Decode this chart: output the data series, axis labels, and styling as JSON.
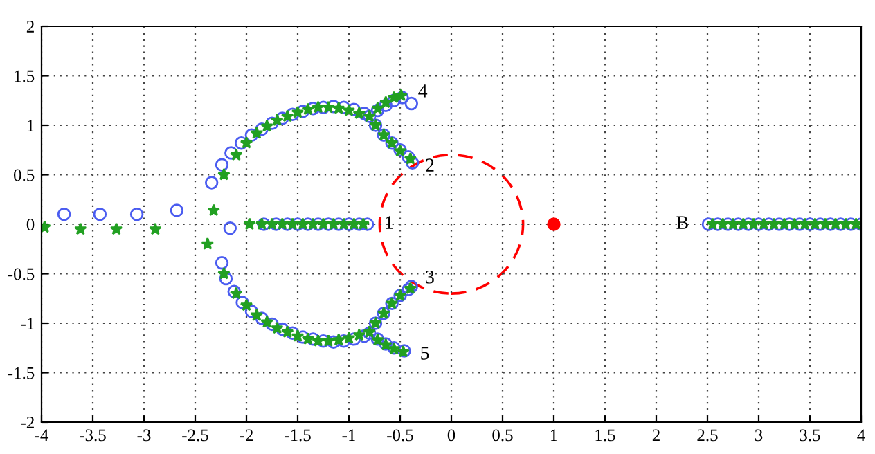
{
  "chart_data": {
    "type": "scatter",
    "xlim": [
      -4,
      4
    ],
    "ylim": [
      -2,
      2
    ],
    "xticks": [
      -4,
      -3.5,
      -3,
      -2.5,
      -2,
      -1.5,
      -1,
      -0.5,
      0,
      0.5,
      1,
      1.5,
      2,
      2.5,
      3,
      3.5,
      4
    ],
    "yticks": [
      -2,
      -1.5,
      -1,
      -0.5,
      0,
      0.5,
      1,
      1.5,
      2
    ],
    "grid": true,
    "legend": false,
    "series": [
      {
        "marker": "circle",
        "color": "#4a5cf0",
        "x": [
          -3.78,
          -3.43,
          -3.07,
          -2.68,
          -2.16,
          -1.83,
          -1.71,
          -1.6,
          -1.5,
          -1.4,
          -1.3,
          -1.2,
          -1.1,
          -1.0,
          -0.9,
          -0.82,
          -2.34,
          -2.24,
          -2.15,
          -2.05,
          -1.95,
          -1.85,
          -1.75,
          -1.65,
          -1.55,
          -1.45,
          -1.35,
          -1.25,
          -1.15,
          -1.05,
          -0.95,
          -0.85,
          -0.8,
          -0.72,
          -0.64,
          -0.56,
          -0.48,
          -0.39,
          -0.74,
          -0.66,
          -0.58,
          -0.5,
          -0.42,
          -0.38,
          -2.24,
          -2.2,
          -2.12,
          -2.04,
          -1.95,
          -1.85,
          -1.75,
          -1.65,
          -1.55,
          -1.45,
          -1.35,
          -1.25,
          -1.15,
          -1.05,
          -0.95,
          -0.85,
          -0.8,
          -0.74,
          -0.66,
          -0.58,
          -0.5,
          -0.42,
          -0.39,
          -0.72,
          -0.64,
          -0.56,
          -0.46,
          2.51,
          2.6,
          2.7,
          2.8,
          2.9,
          3.0,
          3.1,
          3.2,
          3.3,
          3.4,
          3.5,
          3.6,
          3.7,
          3.8,
          3.9,
          4.0
        ],
        "values": [
          0.1,
          0.1,
          0.1,
          0.14,
          -0.04,
          0,
          0,
          0,
          0,
          0,
          0,
          0,
          0,
          0,
          0,
          0,
          0.42,
          0.6,
          0.72,
          0.82,
          0.9,
          0.96,
          1.02,
          1.07,
          1.11,
          1.14,
          1.17,
          1.18,
          1.19,
          1.18,
          1.16,
          1.12,
          1.09,
          1.15,
          1.2,
          1.25,
          1.28,
          1.22,
          1.0,
          0.9,
          0.82,
          0.75,
          0.68,
          0.62,
          -0.39,
          -0.55,
          -0.68,
          -0.79,
          -0.88,
          -0.95,
          -1.01,
          -1.06,
          -1.1,
          -1.14,
          -1.16,
          -1.18,
          -1.19,
          -1.18,
          -1.16,
          -1.13,
          -1.1,
          -1.0,
          -0.9,
          -0.8,
          -0.72,
          -0.66,
          -0.63,
          -1.16,
          -1.21,
          -1.25,
          -1.28,
          0,
          0,
          0,
          0,
          0,
          0,
          0,
          0,
          0,
          0,
          0,
          0,
          0,
          0,
          0,
          0
        ]
      },
      {
        "marker": "star",
        "color": "#22a022",
        "x": [
          -3.97,
          -3.62,
          -3.27,
          -2.89,
          -2.32,
          -2.38,
          -1.97,
          -1.85,
          -1.75,
          -1.65,
          -1.55,
          -1.45,
          -1.35,
          -1.25,
          -1.15,
          -1.05,
          -0.95,
          -0.86,
          -2.22,
          -2.1,
          -2.0,
          -1.9,
          -1.8,
          -1.7,
          -1.6,
          -1.5,
          -1.4,
          -1.3,
          -1.2,
          -1.1,
          -1.0,
          -0.9,
          -0.8,
          -0.72,
          -0.64,
          -0.56,
          -0.49,
          -0.74,
          -0.66,
          -0.58,
          -0.5,
          -0.4,
          -2.22,
          -2.1,
          -2.0,
          -1.9,
          -1.8,
          -1.7,
          -1.6,
          -1.5,
          -1.4,
          -1.3,
          -1.2,
          -1.1,
          -1.0,
          -0.9,
          -0.8,
          -0.74,
          -0.66,
          -0.58,
          -0.5,
          -0.4,
          -0.72,
          -0.64,
          -0.56,
          -0.47,
          2.55,
          2.65,
          2.75,
          2.85,
          2.95,
          3.05,
          3.15,
          3.25,
          3.35,
          3.45,
          3.55,
          3.65,
          3.75,
          3.85,
          3.95
        ],
        "values": [
          -0.03,
          -0.05,
          -0.05,
          -0.05,
          0.14,
          -0.2,
          0,
          0,
          0,
          0,
          0,
          0,
          0,
          0,
          0,
          0,
          0,
          0,
          0.5,
          0.7,
          0.82,
          0.92,
          0.99,
          1.05,
          1.09,
          1.13,
          1.16,
          1.18,
          1.18,
          1.17,
          1.15,
          1.12,
          1.09,
          1.17,
          1.23,
          1.28,
          1.3,
          1.0,
          0.9,
          0.82,
          0.74,
          0.66,
          -0.5,
          -0.7,
          -0.82,
          -0.92,
          -0.99,
          -1.05,
          -1.09,
          -1.13,
          -1.16,
          -1.18,
          -1.18,
          -1.17,
          -1.15,
          -1.12,
          -1.09,
          -1.0,
          -0.9,
          -0.8,
          -0.72,
          -0.65,
          -1.17,
          -1.22,
          -1.26,
          -1.29,
          0,
          0,
          0,
          0,
          0,
          0,
          0,
          0,
          0,
          0,
          0,
          0,
          0,
          0,
          0
        ]
      },
      {
        "marker": "circle",
        "color": "#ff0000",
        "x": [
          1
        ],
        "values": [
          0
        ]
      }
    ],
    "annotations": [
      {
        "text": "1",
        "x": -0.75,
        "y": 0
      },
      {
        "text": "2",
        "x": -0.35,
        "y": 0.58
      },
      {
        "text": "3",
        "x": -0.35,
        "y": -0.55
      },
      {
        "text": "4",
        "x": -0.42,
        "y": 1.33
      },
      {
        "text": "5",
        "x": -0.4,
        "y": -1.32
      },
      {
        "text": "B",
        "x": 2.45,
        "y": 0
      }
    ]
  }
}
